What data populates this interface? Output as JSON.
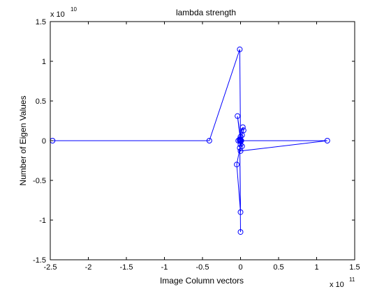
{
  "chart_data": {
    "type": "line",
    "title": "lambda strength",
    "xlabel": "Image Column vectors",
    "ylabel": "Number of Eigen Values",
    "x_multiplier": "x 10",
    "x_exponent": "11",
    "y_multiplier": "x 10",
    "y_exponent": "10",
    "xlim": [
      -2.5,
      1.5
    ],
    "ylim": [
      -1.5,
      1.5
    ],
    "xticks": [
      -2.5,
      -2,
      -1.5,
      -1,
      -0.5,
      0,
      0.5,
      1,
      1.5
    ],
    "xtick_labels": [
      "-2.5",
      "-2",
      "-1.5",
      "-1",
      "-0.5",
      "0",
      "0.5",
      "1",
      "1.5"
    ],
    "yticks": [
      -1.5,
      -1,
      -0.5,
      0,
      0.5,
      1,
      1.5
    ],
    "ytick_labels": [
      "-1.5",
      "-1",
      "-0.5",
      "0",
      "0.5",
      "1",
      "1.5"
    ],
    "grid": false,
    "series_color": "#0000ff",
    "marker": "circle",
    "series": [
      {
        "x": [
          -2.47,
          -0.41,
          -0.01,
          0.0,
          -0.04,
          0.0,
          -0.01,
          0.03,
          0.04,
          0.02,
          0.0,
          -0.03,
          0.02,
          -0.01,
          0.0,
          1.14,
          0.0,
          -0.01,
          0.01,
          -0.05,
          0.0,
          -0.01,
          0.0
        ],
        "y": [
          0.0,
          0.0,
          1.15,
          0.0,
          0.31,
          0.05,
          0.0,
          0.17,
          0.13,
          0.07,
          -0.05,
          0.0,
          -0.07,
          0.02,
          0.0,
          0.0,
          -0.13,
          -0.09,
          0.0,
          -0.3,
          -0.9,
          0.01,
          -1.15
        ]
      }
    ]
  }
}
